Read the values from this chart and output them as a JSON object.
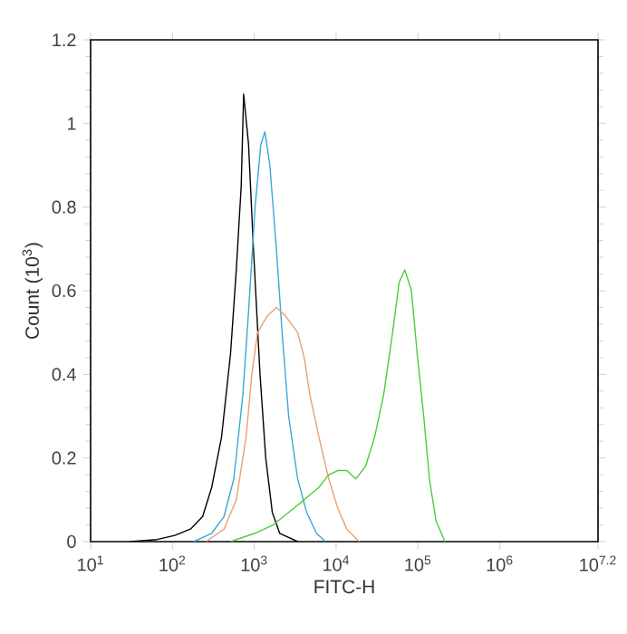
{
  "chart_data": {
    "type": "line",
    "xlabel": "FITC-H",
    "ylabel": "Count (10$^{3}$)",
    "log": "x",
    "grid": false,
    "xlim": [
      10,
      15848931.92
    ],
    "ylim": [
      0,
      1.2
    ],
    "xticks": [
      {
        "value": 10,
        "label": "10$^{1}$"
      },
      {
        "value": 100,
        "label": "10$^{2}$"
      },
      {
        "value": 1000,
        "label": "10$^{3}$"
      },
      {
        "value": 10000,
        "label": "10$^{4}$"
      },
      {
        "value": 100000,
        "label": "10$^{5}$"
      },
      {
        "value": 1000000,
        "label": "10$^{6}$"
      },
      {
        "value": 15848931.92,
        "label": "10$^{7.2}$"
      }
    ],
    "yticks": [
      0,
      0.2,
      0.4,
      0.6,
      0.8,
      1,
      1.2
    ],
    "series": [
      {
        "color": "#000000",
        "x": [
          30,
          65,
          107,
          166,
          234,
          302,
          398,
          513,
          603,
          692,
          741,
          851,
          977,
          1175,
          1380,
          1660,
          2042,
          3388
        ],
        "values": [
          0,
          0.005,
          0.015,
          0.03,
          0.06,
          0.13,
          0.25,
          0.45,
          0.65,
          0.85,
          1.07,
          0.95,
          0.7,
          0.4,
          0.2,
          0.07,
          0.02,
          0
        ]
      },
      {
        "color": "#3aa6d8",
        "x": [
          182,
          302,
          427,
          562,
          724,
          851,
          1023,
          1202,
          1349,
          1549,
          1862,
          2188,
          2630,
          3388,
          4365,
          5754,
          7413
        ],
        "values": [
          0,
          0.02,
          0.06,
          0.15,
          0.35,
          0.55,
          0.8,
          0.95,
          0.98,
          0.9,
          0.7,
          0.5,
          0.3,
          0.15,
          0.07,
          0.02,
          0
        ]
      },
      {
        "color": "#e8a070",
        "x": [
          257,
          427,
          603,
          794,
          933,
          1096,
          1445,
          1862,
          2399,
          3388,
          4074,
          4786,
          6166,
          8128,
          10471,
          13490,
          19055
        ],
        "values": [
          0,
          0.03,
          0.1,
          0.25,
          0.4,
          0.5,
          0.54,
          0.56,
          0.54,
          0.5,
          0.44,
          0.35,
          0.25,
          0.15,
          0.08,
          0.03,
          0
        ]
      },
      {
        "color": "#4ccc3c",
        "x": [
          513,
          1023,
          1698,
          2630,
          4074,
          6166,
          8128,
          10471,
          13490,
          17378,
          22909,
          29512,
          38019,
          48978,
          58884,
          69183,
          83176,
          97724,
          117490,
          138038,
          165959,
          213796
        ],
        "values": [
          0,
          0.02,
          0.04,
          0.07,
          0.1,
          0.13,
          0.16,
          0.17,
          0.17,
          0.15,
          0.18,
          0.25,
          0.35,
          0.5,
          0.62,
          0.65,
          0.6,
          0.45,
          0.3,
          0.15,
          0.05,
          0
        ]
      }
    ]
  }
}
